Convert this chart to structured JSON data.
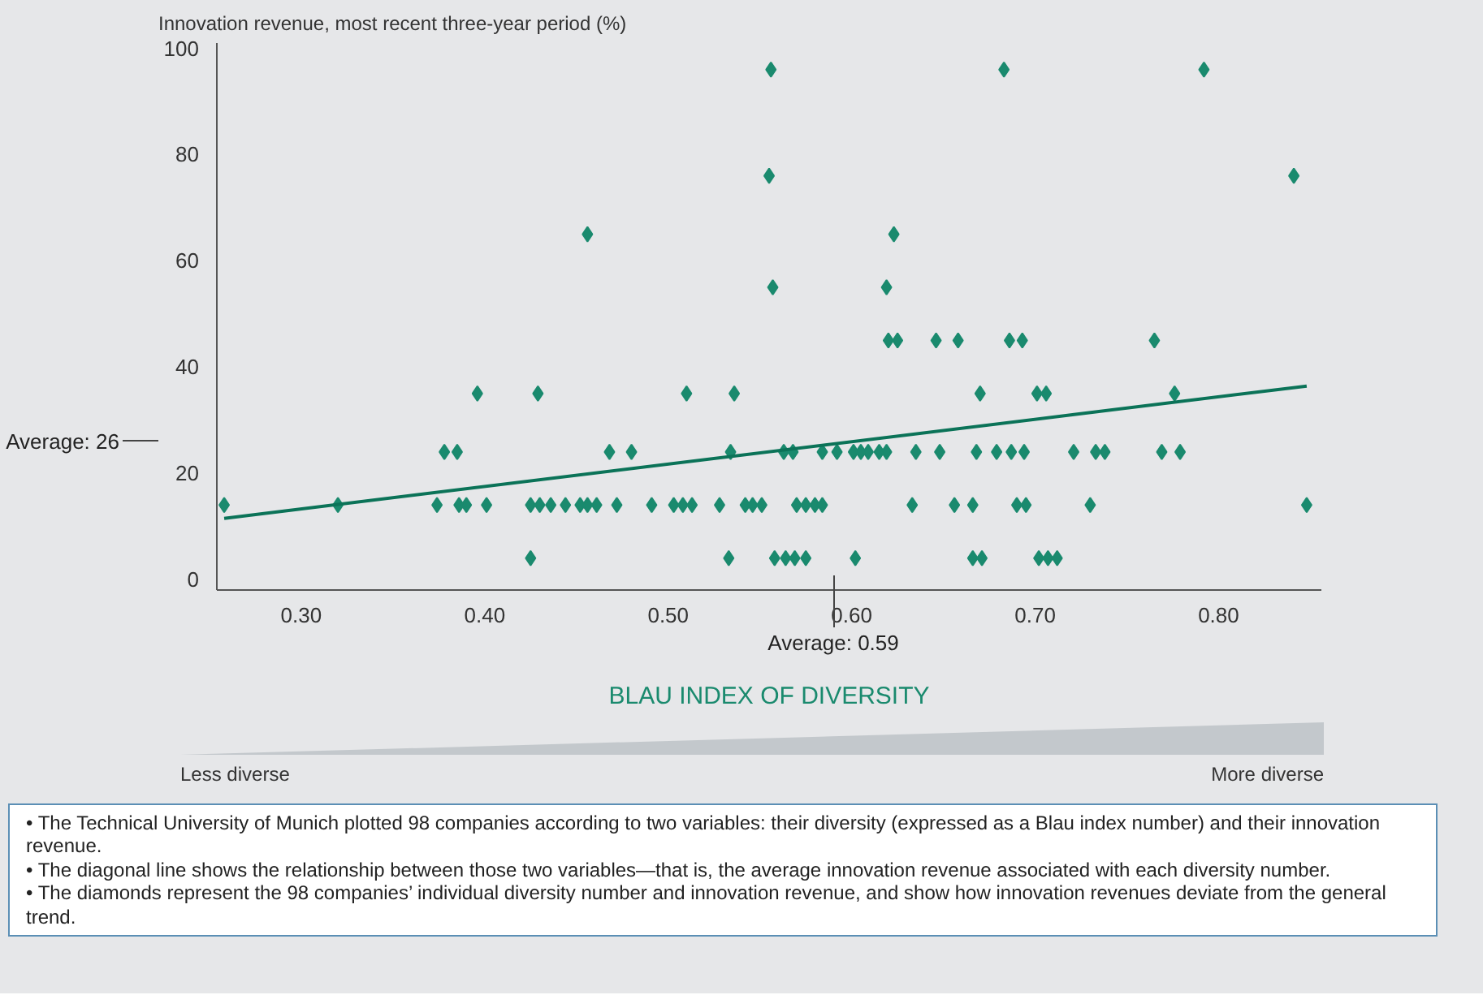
{
  "chart_data": {
    "type": "scatter",
    "xlabel": "BLAU INDEX OF DIVERSITY",
    "ylabel": "Innovation revenue, most recent three-year period (%)",
    "xlim": [
      0.254,
      0.856
    ],
    "ylim": [
      -2,
      101
    ],
    "xticks": [
      {
        "value": 0.3,
        "label": "0.30"
      },
      {
        "value": 0.4,
        "label": "0.40"
      },
      {
        "value": 0.5,
        "label": "0.50"
      },
      {
        "value": 0.6,
        "label": "0.60"
      },
      {
        "value": 0.7,
        "label": "0.70"
      },
      {
        "value": 0.8,
        "label": "0.80"
      }
    ],
    "yticks": [
      0,
      20,
      40,
      60,
      80,
      100
    ],
    "marker": "diamond",
    "series": [
      {
        "color": "#1a8a6e",
        "x": [
          0.258,
          0.32,
          0.396,
          0.429,
          0.378,
          0.385,
          0.374,
          0.386,
          0.39,
          0.401,
          0.425,
          0.43,
          0.436,
          0.444,
          0.452,
          0.456,
          0.461,
          0.472,
          0.491,
          0.503,
          0.508,
          0.513,
          0.528,
          0.542,
          0.546,
          0.551,
          0.425,
          0.533,
          0.456,
          0.468,
          0.48,
          0.51,
          0.536,
          0.534,
          0.556,
          0.683,
          0.792,
          0.555,
          0.841,
          0.623,
          0.557,
          0.619,
          0.62,
          0.625,
          0.646,
          0.658,
          0.686,
          0.693,
          0.765,
          0.67,
          0.701,
          0.706,
          0.776,
          0.563,
          0.568,
          0.584,
          0.592,
          0.601,
          0.605,
          0.609,
          0.615,
          0.619,
          0.635,
          0.648,
          0.668,
          0.679,
          0.687,
          0.694,
          0.721,
          0.733,
          0.738,
          0.769,
          0.779,
          0.57,
          0.575,
          0.58,
          0.584,
          0.633,
          0.656,
          0.666,
          0.69,
          0.695,
          0.73,
          0.848,
          0.558,
          0.564,
          0.569,
          0.575,
          0.602,
          0.666,
          0.671,
          0.702,
          0.707,
          0.712
        ],
        "values": [
          14,
          14,
          35,
          35,
          24,
          24,
          14,
          14,
          14,
          14,
          14,
          14,
          14,
          14,
          14,
          14,
          14,
          14,
          14,
          14,
          14,
          14,
          14,
          14,
          14,
          14,
          4,
          4,
          65,
          24,
          24,
          35,
          35,
          24,
          96,
          96,
          96,
          76,
          76,
          65,
          55,
          55,
          45,
          45,
          45,
          45,
          45,
          45,
          45,
          35,
          35,
          35,
          35,
          24,
          24,
          24,
          24,
          24,
          24,
          24,
          24,
          24,
          24,
          24,
          24,
          24,
          24,
          24,
          24,
          24,
          24,
          24,
          24,
          14,
          14,
          14,
          14,
          14,
          14,
          14,
          14,
          14,
          14,
          14,
          4,
          4,
          4,
          4,
          4,
          4,
          4,
          4,
          4,
          4
        ]
      },
      {
        "type": "line",
        "marker": "none",
        "color": "#0b7358",
        "x": [
          0.258,
          0.848
        ],
        "values": [
          11.5,
          36.4
        ]
      }
    ],
    "ref_lines": [
      {
        "axis": "y",
        "value": 26,
        "label": "Average: 26"
      },
      {
        "axis": "x",
        "value": 0.59,
        "label": "Average: 0.59"
      }
    ],
    "annotations": [
      "Less diverse",
      "More diverse",
      "• The Technical University of Munich plotted 98 companies according to two variables: their diversity (expressed as a Blau index number) and their innovation revenue.",
      "• The diagonal line shows the relationship between those two variables—that is, the average innovation revenue associated with each diversity number.",
      "• The diamonds represent the 98 companies’ individual diversity number and innovation revenue, and show how innovation revenues deviate from the general trend."
    ]
  }
}
